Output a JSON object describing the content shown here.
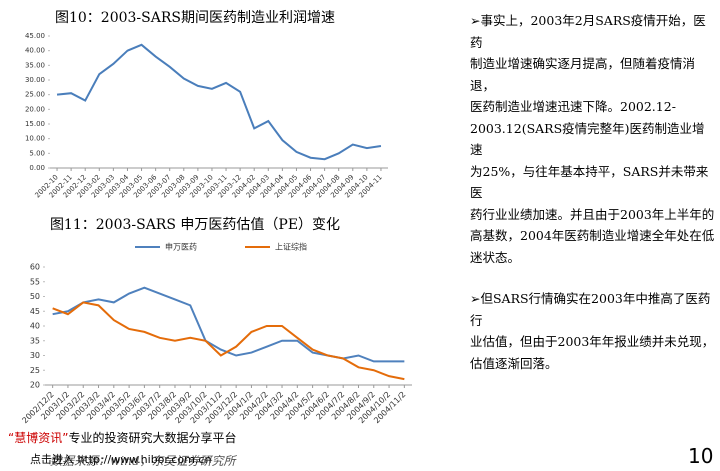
{
  "chart_data": [
    {
      "type": "line",
      "title": "图10：2003-SARS期间医药制造业利润增速",
      "categories": [
        "2002-10",
        "2002-11",
        "2002-12",
        "2003-02",
        "2003-03",
        "2003-04",
        "2003-05",
        "2003-06",
        "2003-07",
        "2003-08",
        "2003-09",
        "2003-10",
        "2003-11",
        "2003-12",
        "2004-02",
        "2004-03",
        "2004-04",
        "2004-05",
        "2004-06",
        "2004-07",
        "2004-08",
        "2004-09",
        "2004-10",
        "2004-11"
      ],
      "series": [
        {
          "name": null,
          "color": "#4a7ebb",
          "values": [
            25,
            25.5,
            23,
            32,
            35.5,
            40,
            42,
            38,
            34.5,
            30.5,
            28,
            27,
            29,
            26,
            13.5,
            16,
            9.5,
            5.5,
            3.5,
            3,
            5,
            8,
            6.8,
            7.5
          ]
        }
      ],
      "ylim": [
        0,
        45
      ],
      "yticks": [
        {
          "value": 0,
          "label": "0.00"
        },
        {
          "value": 5,
          "label": "5.00"
        },
        {
          "value": 10,
          "label": "10.00"
        },
        {
          "value": 15,
          "label": "15.00"
        },
        {
          "value": 20,
          "label": "20.00"
        },
        {
          "value": 25,
          "label": "25.00"
        },
        {
          "value": 30,
          "label": "30.00"
        },
        {
          "value": 35,
          "label": "35.00"
        },
        {
          "value": 40,
          "label": "40.00"
        },
        {
          "value": 45,
          "label": "45.00"
        }
      ],
      "grid": false
    },
    {
      "type": "line",
      "title": "图11：2003-SARS 申万医药估值（PE）变化",
      "categories": [
        "2002/12/2",
        "2003/1/2",
        "2003/2/2",
        "2003/3/2",
        "2003/4/2",
        "2003/5/2",
        "2003/6/2",
        "2003/7/2",
        "2003/8/2",
        "2003/9/2",
        "2003/10/2",
        "2003/11/2",
        "2003/12/2",
        "2004/1/2",
        "2004/2/2",
        "2004/3/2",
        "2004/4/2",
        "2004/5/2",
        "2004/6/2",
        "2004/7/2",
        "2004/8/2",
        "2004/9/2",
        "2004/10/2",
        "2004/11/2"
      ],
      "series": [
        {
          "name": "申万医药",
          "color": "#4f81bd",
          "values": [
            44,
            45,
            48,
            49,
            48,
            51,
            53,
            51,
            49,
            47,
            35,
            32,
            30,
            31,
            33,
            35,
            35,
            31,
            30,
            29,
            30,
            28,
            28,
            28
          ]
        },
        {
          "name": "上证综指",
          "color": "#e46c0a",
          "values": [
            46,
            44,
            48,
            47,
            42,
            39,
            38,
            36,
            35,
            36,
            35,
            30,
            33,
            38,
            40,
            40,
            36,
            32,
            30,
            29,
            26,
            25,
            23,
            22
          ]
        }
      ],
      "ylim": [
        20,
        60
      ],
      "yticks": [
        20,
        25,
        30,
        35,
        40,
        45,
        50,
        55,
        60
      ],
      "legend": "top",
      "grid": false
    }
  ],
  "text": {
    "paragraphs": [
      [
        "➢事实上，2003年2月SARS疫情开始，医药",
        "制造业增速确实逐月提高，但随着疫情消退，",
        "医药制造业增速迅速下降。2002.12-",
        "2003.12(SARS疫情完整年)医药制造业增速",
        "为25%，与往年基本持平，SARS并未带来医",
        "药行业业绩加速。并且由于2003年上半年的",
        "高基数，2004年医药制造业增速全年处在低",
        "迷状态。"
      ],
      [
        "➢但SARS行情确实在2003年中推高了医药行",
        "业估值，但由于2003年年报业绩并未兑现，",
        "估值逐渐回落。"
      ]
    ]
  },
  "footer": {
    "source": "数据来源：wind，东吴证券研究所",
    "brand": "“慧博资讯”",
    "slogan": "专业的投资研究大数据分享平台",
    "link": "点击进入 http://www.hibor.com.cn",
    "page": "10"
  }
}
